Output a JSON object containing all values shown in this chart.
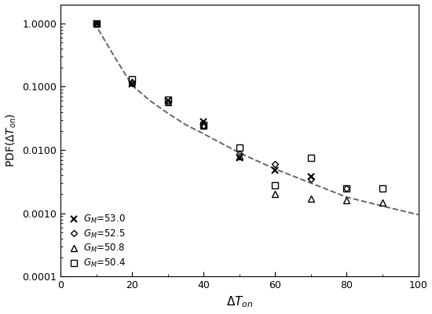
{
  "title": "",
  "xlabel": "$\\Delta T_{on}$",
  "ylabel": "PDF($\\Delta T_{on}$)",
  "xlim": [
    0,
    100
  ],
  "ylim": [
    0.0001,
    2.0
  ],
  "series": {
    "GM_53": {
      "label": "$G_M$=53.0",
      "marker": "x",
      "x": [
        10,
        20,
        30,
        40,
        50,
        60,
        70
      ],
      "y": [
        1.0,
        0.11,
        0.06,
        0.028,
        0.0075,
        0.0048,
        0.0038
      ]
    },
    "GM_52": {
      "label": "$G_M$=52.5",
      "marker": "D",
      "x": [
        10,
        20,
        30,
        40,
        50,
        60,
        70,
        80
      ],
      "y": [
        1.0,
        0.115,
        0.058,
        0.024,
        0.0088,
        0.006,
        0.0035,
        0.0025
      ]
    },
    "GM_50_8": {
      "label": "$G_M$=50.8",
      "marker": "^",
      "x": [
        10,
        20,
        30,
        40,
        50,
        60,
        70,
        80,
        90
      ],
      "y": [
        1.0,
        0.12,
        0.058,
        0.024,
        0.008,
        0.002,
        0.0017,
        0.0016,
        0.0015
      ]
    },
    "GM_50_4": {
      "label": "$G_M$=50.4",
      "marker": "s",
      "x": [
        10,
        20,
        30,
        40,
        50,
        60,
        70,
        80,
        90
      ],
      "y": [
        1.0,
        0.13,
        0.062,
        0.025,
        0.011,
        0.0028,
        0.0075,
        0.0025,
        0.0025
      ]
    }
  },
  "dashed_line": {
    "x": [
      9,
      10,
      15,
      20,
      25,
      30,
      35,
      40,
      50,
      60,
      70,
      80,
      90,
      100
    ],
    "y": [
      1.0,
      0.9,
      0.3,
      0.105,
      0.06,
      0.038,
      0.025,
      0.018,
      0.009,
      0.005,
      0.003,
      0.0018,
      0.0013,
      0.00095
    ]
  },
  "marker_size": 5,
  "marker_color": "black",
  "line_color": "#666666",
  "legend_loc": "lower left"
}
